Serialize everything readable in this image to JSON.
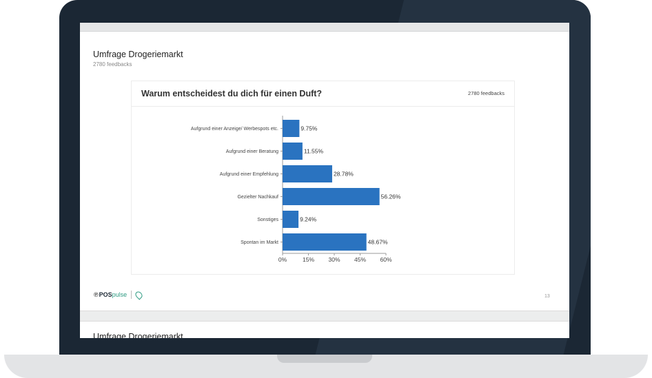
{
  "slide": {
    "title": "Umfrage Drogeriemarkt",
    "subtitle": "2780 feedbacks",
    "page_number": "13"
  },
  "card": {
    "title": "Warum entscheidest du dich für einen Duft?",
    "feedback_count": "2780 feedbacks"
  },
  "footer": {
    "logo_pos": "POS",
    "logo_pulse": "pulse"
  },
  "next_slide": {
    "title": "Umfrage Drogeriemarkt"
  },
  "colors": {
    "bar": "#2a73c0",
    "bezel": "#1b2734"
  },
  "chart_data": {
    "type": "bar",
    "orientation": "horizontal",
    "categories": [
      "Aufgrund einer Anzeige/ Werbespots etc.",
      "Aufgrund einer Beratung",
      "Aufgrund einer Empfehlung",
      "Gezielter Nachkauf",
      "Sonstiges",
      "Spontan im Markt"
    ],
    "values": [
      9.75,
      11.55,
      28.78,
      56.26,
      9.24,
      48.67
    ],
    "value_labels": [
      "9.75%",
      "11.55%",
      "28.78%",
      "56.26%",
      "9.24%",
      "48.67%"
    ],
    "xlim": [
      0,
      60
    ],
    "x_ticks": [
      0,
      15,
      30,
      45,
      60
    ],
    "x_tick_labels": [
      "0%",
      "15%",
      "30%",
      "45%",
      "60%"
    ],
    "grid": false
  }
}
